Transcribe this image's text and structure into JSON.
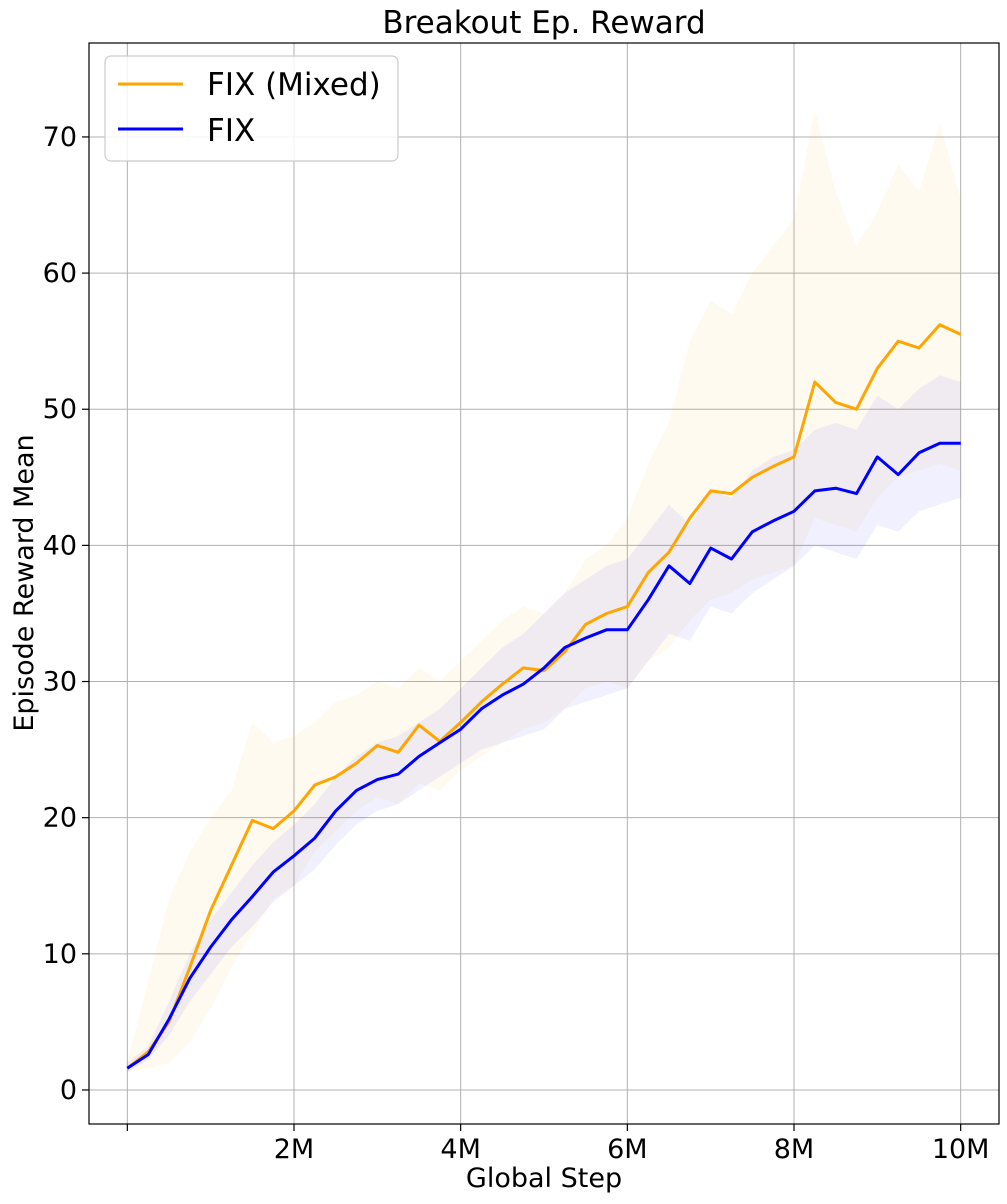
{
  "chart_data": {
    "type": "line",
    "title": "Breakout Ep. Reward",
    "xlabel": "Global Step",
    "ylabel": "Episode Reward Mean",
    "xlim": [
      -460000,
      10460000
    ],
    "ylim": [
      -2.5,
      76.9
    ],
    "x_ticks": [
      0,
      2000000,
      4000000,
      6000000,
      8000000,
      10000000
    ],
    "x_tick_labels": [
      "",
      "2M",
      "4M",
      "6M",
      "8M",
      "10M"
    ],
    "y_ticks": [
      0,
      10,
      20,
      30,
      40,
      50,
      60,
      70
    ],
    "y_tick_labels": [
      "0",
      "10",
      "20",
      "30",
      "40",
      "50",
      "60",
      "70"
    ],
    "grid": true,
    "legend_position": "top-left",
    "series": [
      {
        "name": "FIX (Mixed)",
        "color": "#FFA500",
        "x": [
          0,
          250000,
          500000,
          750000,
          1000000,
          1250000,
          1500000,
          1750000,
          2000000,
          2250000,
          2500000,
          2750000,
          3000000,
          3250000,
          3500000,
          3750000,
          4000000,
          4250000,
          4500000,
          4750000,
          5000000,
          5250000,
          5500000,
          5750000,
          6000000,
          6250000,
          6500000,
          6750000,
          7000000,
          7250000,
          7500000,
          7750000,
          8000000,
          8250000,
          8500000,
          8750000,
          9000000,
          9250000,
          9500000,
          9750000,
          10000000
        ],
        "values": [
          1.6,
          2.8,
          5.0,
          9.0,
          13.2,
          16.5,
          19.8,
          19.2,
          20.5,
          22.4,
          23.0,
          24.0,
          25.3,
          24.8,
          26.8,
          25.6,
          27.0,
          28.5,
          29.8,
          31.0,
          30.8,
          32.2,
          34.2,
          35.0,
          35.5,
          38.0,
          39.5,
          42.0,
          44.0,
          43.8,
          45.0,
          45.8,
          46.5,
          52.0,
          50.5,
          50.0,
          53.0,
          55.0,
          54.5,
          56.2,
          55.5
        ],
        "band_lower": [
          1.3,
          1.6,
          2.0,
          3.5,
          6.0,
          9.0,
          11.5,
          14.0,
          15.0,
          17.5,
          19.0,
          20.5,
          21.5,
          21.0,
          22.5,
          22.0,
          23.5,
          24.5,
          25.5,
          26.5,
          27.0,
          28.0,
          29.5,
          30.0,
          29.5,
          31.5,
          32.5,
          34.5,
          36.0,
          36.5,
          37.5,
          38.0,
          38.5,
          42.0,
          41.5,
          41.0,
          43.5,
          45.0,
          45.5,
          46.0,
          45.5
        ],
        "band_upper": [
          2.0,
          8.0,
          14.0,
          17.5,
          20.0,
          22.0,
          27.0,
          25.5,
          26.0,
          27.0,
          28.5,
          29.0,
          30.0,
          29.5,
          31.0,
          30.0,
          31.5,
          33.0,
          34.5,
          35.5,
          35.0,
          36.5,
          39.0,
          40.0,
          42.0,
          46.0,
          49.0,
          55.0,
          58.0,
          57.0,
          60.0,
          62.0,
          64.0,
          72.0,
          66.0,
          62.0,
          64.5,
          68.0,
          66.0,
          71.0,
          65.5
        ]
      },
      {
        "name": "FIX",
        "color": "#0000FF",
        "x": [
          0,
          250000,
          500000,
          750000,
          1000000,
          1250000,
          1500000,
          1750000,
          2000000,
          2250000,
          2500000,
          2750000,
          3000000,
          3250000,
          3500000,
          3750000,
          4000000,
          4250000,
          4500000,
          4750000,
          5000000,
          5250000,
          5500000,
          5750000,
          6000000,
          6250000,
          6500000,
          6750000,
          7000000,
          7250000,
          7500000,
          7750000,
          8000000,
          8250000,
          8500000,
          8750000,
          9000000,
          9250000,
          9500000,
          9750000,
          10000000
        ],
        "values": [
          1.6,
          2.6,
          5.2,
          8.2,
          10.5,
          12.5,
          14.2,
          16.0,
          17.2,
          18.5,
          20.5,
          22.0,
          22.8,
          23.2,
          24.5,
          25.5,
          26.5,
          28.0,
          29.0,
          29.8,
          31.0,
          32.5,
          33.2,
          33.8,
          33.8,
          36.0,
          38.5,
          37.2,
          39.8,
          39.0,
          41.0,
          41.8,
          42.5,
          44.0,
          44.2,
          43.8,
          46.5,
          45.2,
          46.8,
          47.5,
          47.5
        ],
        "band_lower": [
          1.3,
          2.2,
          4.0,
          6.5,
          8.5,
          10.5,
          12.0,
          13.8,
          15.0,
          16.2,
          18.0,
          19.5,
          20.5,
          21.0,
          22.0,
          23.0,
          24.0,
          25.0,
          25.5,
          26.0,
          26.5,
          28.0,
          28.5,
          29.0,
          29.5,
          31.5,
          33.5,
          33.0,
          35.5,
          35.0,
          36.5,
          37.5,
          38.5,
          40.0,
          39.5,
          39.0,
          41.5,
          41.0,
          42.5,
          43.0,
          43.5
        ],
        "band_upper": [
          2.0,
          3.2,
          6.5,
          10.0,
          12.5,
          14.5,
          16.5,
          18.2,
          19.5,
          21.0,
          23.0,
          24.5,
          25.5,
          26.0,
          27.0,
          28.0,
          29.5,
          31.0,
          32.5,
          33.5,
          35.0,
          36.5,
          37.5,
          38.5,
          39.0,
          41.0,
          43.0,
          41.5,
          44.0,
          43.5,
          45.5,
          46.5,
          47.0,
          48.5,
          49.0,
          48.5,
          51.0,
          50.0,
          51.5,
          52.5,
          52.0
        ]
      }
    ]
  }
}
